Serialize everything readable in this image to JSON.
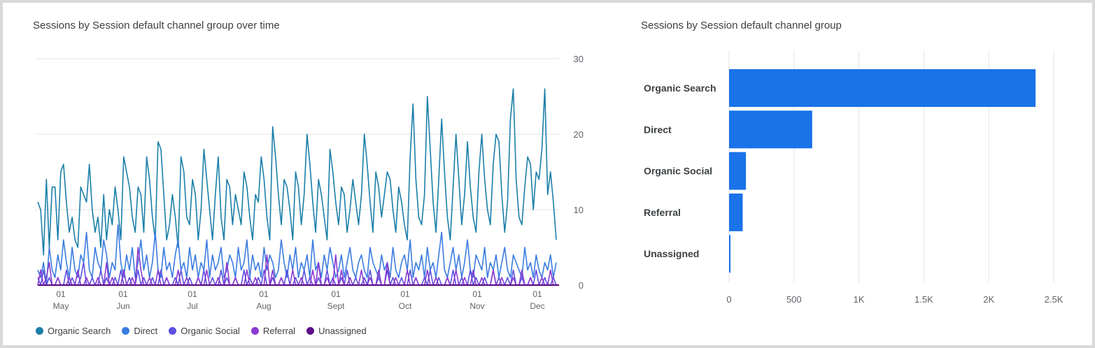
{
  "colors": {
    "organic_search": "#1a7fa8",
    "direct": "#3a7be0",
    "organic_social": "#5b4fe0",
    "referral": "#8a3ad0",
    "unassigned": "#5c0f8a",
    "bar": "#1a73e8",
    "grid": "#e3e3e3",
    "tick": "#5f6368"
  },
  "line_card": {
    "title": "Sessions by Session default channel group over time"
  },
  "bar_card": {
    "title": "Sessions by Session default channel group"
  },
  "chart_data": [
    {
      "type": "line",
      "title": "Sessions by Session default channel group over time",
      "x_tick_labels": [
        {
          "day": "01",
          "month": "May"
        },
        {
          "day": "01",
          "month": "Jun"
        },
        {
          "day": "01",
          "month": "Jul"
        },
        {
          "day": "01",
          "month": "Aug"
        },
        {
          "day": "01",
          "month": "Sept"
        },
        {
          "day": "01",
          "month": "Oct"
        },
        {
          "day": "01",
          "month": "Nov"
        },
        {
          "day": "01",
          "month": "Dec"
        }
      ],
      "y_axis_position": "right",
      "ylim": [
        0,
        30
      ],
      "y_ticks": [
        0,
        10,
        20,
        30
      ],
      "grid": true,
      "legend_placement": "bottom-left",
      "series": [
        {
          "name": "Organic Search",
          "values": [
            11,
            10,
            4,
            14,
            5,
            13,
            13,
            6,
            15,
            16,
            11,
            7,
            9,
            6,
            5,
            13,
            12,
            11,
            16,
            10,
            7,
            9,
            5,
            12,
            6,
            10,
            8,
            13,
            10,
            6,
            17,
            15,
            13,
            9,
            7,
            13,
            12,
            7,
            17,
            14,
            9,
            6,
            19,
            18,
            12,
            6,
            8,
            12,
            9,
            5,
            17,
            15,
            9,
            8,
            14,
            12,
            6,
            10,
            18,
            14,
            10,
            6,
            12,
            17,
            9,
            6,
            14,
            13,
            8,
            12,
            10,
            8,
            15,
            13,
            9,
            6,
            12,
            11,
            17,
            14,
            9,
            6,
            21,
            17,
            12,
            8,
            14,
            13,
            10,
            6,
            15,
            13,
            8,
            12,
            20,
            16,
            11,
            7,
            14,
            12,
            9,
            6,
            18,
            15,
            11,
            8,
            13,
            12,
            7,
            10,
            14,
            11,
            8,
            12,
            20,
            16,
            11,
            7,
            15,
            13,
            9,
            12,
            15,
            14,
            10,
            7,
            13,
            11,
            8,
            6,
            17,
            24,
            14,
            9,
            8,
            12,
            25,
            18,
            11,
            7,
            14,
            22,
            15,
            9,
            6,
            13,
            20,
            14,
            8,
            12,
            19,
            13,
            9,
            7,
            15,
            20,
            14,
            10,
            8,
            16,
            20,
            19,
            12,
            7,
            11,
            22,
            26,
            14,
            9,
            8,
            13,
            17,
            16,
            10,
            15,
            14,
            18,
            26,
            12,
            15,
            11,
            6
          ]
        },
        {
          "name": "Direct",
          "values": [
            2,
            1,
            3,
            0,
            5,
            2,
            1,
            4,
            2,
            6,
            3,
            1,
            5,
            2,
            1,
            4,
            3,
            7,
            2,
            1,
            5,
            3,
            2,
            6,
            4,
            1,
            3,
            2,
            8,
            3,
            1,
            4,
            2,
            5,
            1,
            3,
            6,
            2,
            4,
            1,
            3,
            7,
            2,
            1,
            5,
            2,
            3,
            1,
            4,
            6,
            2,
            3,
            1,
            5,
            2,
            4,
            1,
            3,
            2,
            6,
            1,
            4,
            2,
            3,
            5,
            1,
            2,
            4,
            3,
            1,
            5,
            2,
            3,
            6,
            1,
            4,
            2,
            3,
            1,
            5,
            2,
            4,
            3,
            1,
            2,
            6,
            3,
            1,
            4,
            2,
            5,
            1,
            3,
            2,
            4,
            1,
            6,
            2,
            3,
            1,
            4,
            2,
            5,
            3,
            1,
            2,
            4,
            1,
            3,
            5,
            2,
            1,
            3,
            4,
            2,
            1,
            5,
            3,
            2,
            1,
            4,
            2,
            3,
            1,
            5,
            2,
            1,
            3,
            4,
            2,
            6,
            1,
            3,
            2,
            4,
            1,
            5,
            2,
            3,
            1,
            4,
            7,
            2,
            1,
            3,
            5,
            2,
            4,
            1,
            3,
            6,
            2,
            1,
            4,
            3,
            2,
            5,
            1,
            3,
            2,
            4,
            1,
            3,
            5,
            2,
            1,
            4,
            3,
            2,
            1,
            5,
            2,
            3,
            1,
            4,
            2,
            1,
            3,
            2,
            4,
            1,
            3
          ]
        },
        {
          "name": "Organic Social",
          "values": [
            1,
            0,
            2,
            0,
            1,
            0,
            0,
            1,
            0,
            0,
            2,
            0,
            1,
            0,
            0,
            1,
            3,
            0,
            0,
            1,
            0,
            0,
            2,
            0,
            1,
            0,
            0,
            1,
            0,
            2,
            0,
            0,
            1,
            0,
            0,
            2,
            0,
            1,
            0,
            0,
            1,
            0,
            0,
            2,
            0,
            1,
            0,
            0,
            1,
            0,
            2,
            0,
            0,
            1,
            0,
            0,
            1,
            0,
            2,
            0,
            0,
            1,
            0,
            0,
            2,
            0,
            1,
            0,
            0,
            1,
            0,
            0,
            2,
            0,
            1,
            0,
            0,
            1,
            0,
            2,
            0,
            0,
            1,
            0,
            0,
            1,
            0,
            2,
            0,
            0,
            1,
            0,
            0,
            2,
            0,
            1,
            0,
            0,
            1,
            0,
            0,
            2,
            0,
            1,
            0,
            0,
            1,
            0,
            2,
            0,
            0,
            1,
            0,
            0,
            1,
            0,
            2,
            0,
            0,
            1,
            0,
            0,
            2,
            0,
            1,
            0,
            0,
            1,
            0,
            0,
            2,
            0,
            1,
            0,
            0,
            1,
            0,
            2,
            0,
            0,
            1,
            0,
            0,
            1,
            0,
            2,
            0,
            0,
            1,
            0,
            0,
            2,
            0,
            1,
            0,
            0,
            1,
            0,
            0,
            2,
            0,
            1,
            0,
            0,
            1,
            0,
            2,
            0,
            0,
            1,
            0,
            0,
            1,
            0,
            2,
            0,
            0,
            1,
            0,
            0,
            1,
            0
          ]
        },
        {
          "name": "Referral",
          "values": [
            0,
            2,
            0,
            1,
            3,
            0,
            0,
            1,
            0,
            0,
            0,
            1,
            0,
            0,
            2,
            0,
            0,
            1,
            0,
            0,
            0,
            1,
            0,
            0,
            3,
            0,
            1,
            0,
            0,
            0,
            2,
            0,
            0,
            1,
            0,
            5,
            2,
            0,
            0,
            1,
            0,
            0,
            2,
            0,
            0,
            1,
            0,
            0,
            0,
            2,
            0,
            0,
            1,
            0,
            0,
            0,
            1,
            0,
            0,
            2,
            0,
            0,
            0,
            1,
            0,
            0,
            3,
            0,
            0,
            1,
            0,
            0,
            0,
            2,
            0,
            0,
            1,
            0,
            0,
            0,
            4,
            0,
            2,
            0,
            0,
            1,
            0,
            0,
            0,
            2,
            0,
            0,
            1,
            0,
            0,
            0,
            2,
            0,
            3,
            0,
            0,
            1,
            0,
            0,
            4,
            0,
            2,
            0,
            0,
            1,
            0,
            0,
            0,
            2,
            0,
            0,
            1,
            0,
            0,
            2,
            0,
            0,
            3,
            0,
            0,
            1,
            0,
            0,
            0,
            2,
            0,
            0,
            1,
            0,
            0,
            0,
            2,
            0,
            0,
            1,
            0,
            0,
            0,
            1,
            0,
            0,
            2,
            0,
            0,
            1,
            0,
            0,
            2,
            0,
            0,
            1,
            0,
            0,
            0,
            2,
            0,
            0,
            1,
            0,
            0,
            0,
            1,
            0,
            0,
            2,
            0,
            0,
            1,
            0,
            0,
            0,
            1,
            0,
            0,
            2,
            0,
            0
          ]
        },
        {
          "name": "Unassigned",
          "values": [
            0,
            0,
            0,
            0,
            0,
            0,
            0,
            0,
            0,
            0,
            0,
            0,
            0,
            0,
            0,
            0,
            0,
            0,
            0,
            0,
            0,
            0,
            0,
            0,
            0,
            0,
            0,
            0,
            0,
            0,
            0,
            0,
            0,
            0,
            0,
            0,
            0,
            0,
            0,
            0,
            0,
            0,
            0,
            0,
            0,
            0,
            0,
            0,
            0,
            0,
            0,
            0,
            0,
            0,
            0,
            0,
            0,
            0,
            0,
            0,
            0,
            0,
            0,
            0,
            0,
            0,
            0,
            0,
            0,
            0,
            0,
            0,
            0,
            0,
            0,
            0,
            0,
            0,
            0,
            0,
            0,
            0,
            0,
            0,
            0,
            0,
            0,
            0,
            0,
            0,
            0,
            0,
            0,
            0,
            0,
            0,
            0,
            0,
            0,
            0,
            0,
            0,
            0,
            0,
            0,
            0,
            0,
            0,
            0,
            0,
            0,
            0,
            0,
            0,
            0,
            0,
            0,
            0,
            0,
            0,
            0,
            0,
            0,
            0,
            0,
            0,
            0,
            0,
            0,
            0,
            0,
            0,
            0,
            0,
            0,
            0,
            0,
            0,
            0,
            0,
            0,
            0,
            0,
            0,
            0,
            0,
            0,
            0,
            0,
            0,
            0,
            0,
            0,
            0,
            0,
            0,
            0,
            0,
            0,
            0,
            0,
            0,
            0,
            0,
            0,
            0,
            0,
            0,
            0,
            0,
            0,
            0,
            0,
            0,
            0,
            0,
            0,
            0,
            0,
            0,
            0,
            0,
            0
          ]
        }
      ]
    },
    {
      "type": "bar",
      "orientation": "horizontal",
      "title": "Sessions by Session default channel group",
      "categories": [
        "Organic Search",
        "Direct",
        "Organic Social",
        "Referral",
        "Unassigned"
      ],
      "values": [
        2360,
        640,
        130,
        105,
        10
      ],
      "xlim": [
        0,
        2500
      ],
      "x_ticks": [
        0,
        500,
        1000,
        1500,
        2000,
        2500
      ],
      "x_tick_labels": [
        "0",
        "500",
        "1K",
        "1.5K",
        "2K",
        "2.5K"
      ],
      "grid": true
    }
  ]
}
